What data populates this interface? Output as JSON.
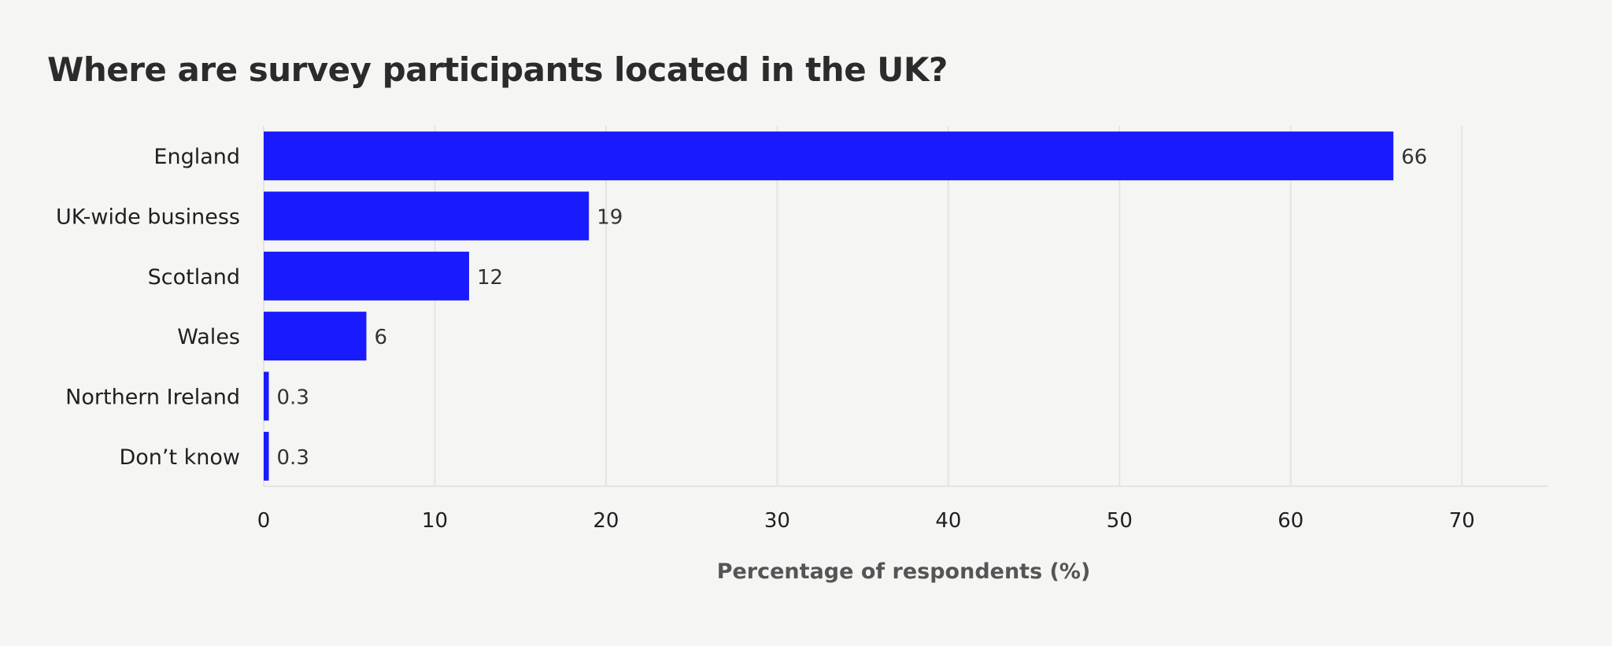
{
  "chart_data": {
    "type": "bar",
    "orientation": "horizontal",
    "title": "Where are survey participants located in the UK?",
    "xlabel": "Percentage of respondents (%)",
    "ylabel": "",
    "categories": [
      "England",
      "UK-wide business",
      "Scotland",
      "Wales",
      "Northern Ireland",
      "Don’t know"
    ],
    "values": [
      66,
      19,
      12,
      6,
      0.3,
      0.3
    ],
    "value_labels": [
      "66",
      "19",
      "12",
      "6",
      "0.3",
      "0.3"
    ],
    "xlim": [
      0,
      75
    ],
    "xticks": [
      0,
      10,
      20,
      30,
      40,
      50,
      60,
      70
    ],
    "grid": "vertical",
    "legend": "none",
    "bar_color": "#1a1aff"
  }
}
